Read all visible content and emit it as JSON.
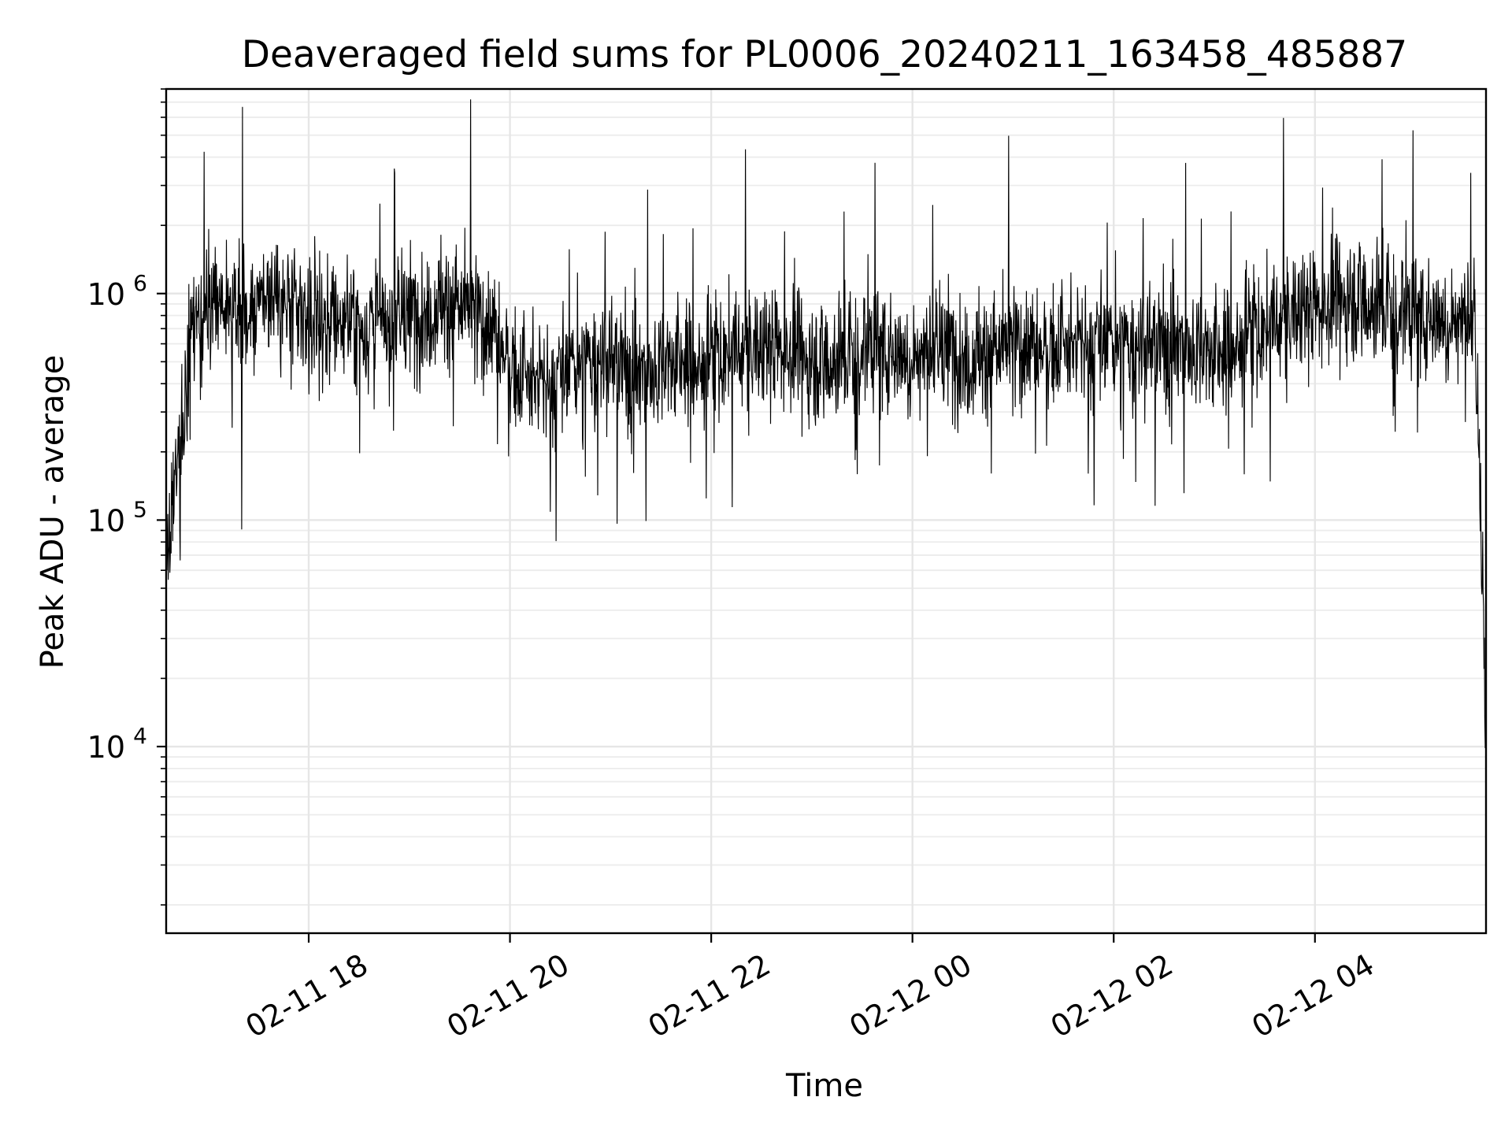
{
  "chart_data": {
    "type": "line",
    "title": "Deaveraged field sums for PL0006_20240211_163458_485887",
    "xlabel": "Time",
    "ylabel": "Peak ADU - average",
    "yscale": "log",
    "ylim": [
      1500,
      8000000
    ],
    "xlim": [
      "2024-02-11 16:35",
      "2024-02-12 05:42"
    ],
    "x_ticks": [
      {
        "t": "2024-02-11 18:00",
        "label": "02-11 18"
      },
      {
        "t": "2024-02-11 20:00",
        "label": "02-11 20"
      },
      {
        "t": "2024-02-11 22:00",
        "label": "02-11 22"
      },
      {
        "t": "2024-02-12 00:00",
        "label": "02-12 00"
      },
      {
        "t": "2024-02-12 02:00",
        "label": "02-12 02"
      },
      {
        "t": "2024-02-12 04:00",
        "label": "02-12 04"
      }
    ],
    "y_ticks": [
      {
        "value": 10000,
        "base": "10",
        "exp": "4"
      },
      {
        "value": 100000,
        "base": "10",
        "exp": "5"
      },
      {
        "value": 1000000,
        "base": "10",
        "exp": "6"
      }
    ],
    "grid": true,
    "legend": "none",
    "line_color": "#000000",
    "series": [
      {
        "x": [
          "2024-02-11 16:35",
          "2024-02-11 16:50",
          "2024-02-11 17:05",
          "2024-02-11 17:20",
          "2024-02-11 17:35",
          "2024-02-11 17:50",
          "2024-02-11 18:05",
          "2024-02-11 18:20",
          "2024-02-11 18:35",
          "2024-02-11 18:50",
          "2024-02-11 19:05",
          "2024-02-11 19:20",
          "2024-02-11 19:35",
          "2024-02-11 19:50",
          "2024-02-11 20:05",
          "2024-02-11 20:20",
          "2024-02-11 20:35",
          "2024-02-11 20:50",
          "2024-02-11 21:05",
          "2024-02-11 21:20",
          "2024-02-11 21:35",
          "2024-02-11 21:50",
          "2024-02-11 22:05",
          "2024-02-11 22:20",
          "2024-02-11 22:35",
          "2024-02-11 22:50",
          "2024-02-11 23:05",
          "2024-02-11 23:20",
          "2024-02-11 23:35",
          "2024-02-11 23:50",
          "2024-02-12 00:05",
          "2024-02-12 00:20",
          "2024-02-12 00:35",
          "2024-02-12 00:50",
          "2024-02-12 01:05",
          "2024-02-12 01:20",
          "2024-02-12 01:35",
          "2024-02-12 01:50",
          "2024-02-12 02:05",
          "2024-02-12 02:20",
          "2024-02-12 02:35",
          "2024-02-12 02:50",
          "2024-02-12 03:05",
          "2024-02-12 03:20",
          "2024-02-12 03:35",
          "2024-02-12 03:50",
          "2024-02-12 04:05",
          "2024-02-12 04:20",
          "2024-02-12 04:35",
          "2024-02-12 04:50",
          "2024-02-12 05:05",
          "2024-02-12 05:20",
          "2024-02-12 05:35",
          "2024-02-12 05:40",
          "2024-02-12 05:42"
        ],
        "y": [
          60000,
          700000,
          900000,
          800000,
          1000000,
          850000,
          750000,
          800000,
          700000,
          750000,
          800000,
          900000,
          850000,
          700000,
          420000,
          380000,
          450000,
          500000,
          480000,
          450000,
          500000,
          470000,
          520000,
          550000,
          600000,
          560000,
          500000,
          520000,
          600000,
          550000,
          530000,
          560000,
          520000,
          550000,
          600000,
          570000,
          560000,
          600000,
          580000,
          560000,
          620000,
          580000,
          520000,
          650000,
          700000,
          850000,
          900000,
          1000000,
          900000,
          850000,
          800000,
          780000,
          750000,
          60000,
          7000
        ]
      }
    ]
  }
}
